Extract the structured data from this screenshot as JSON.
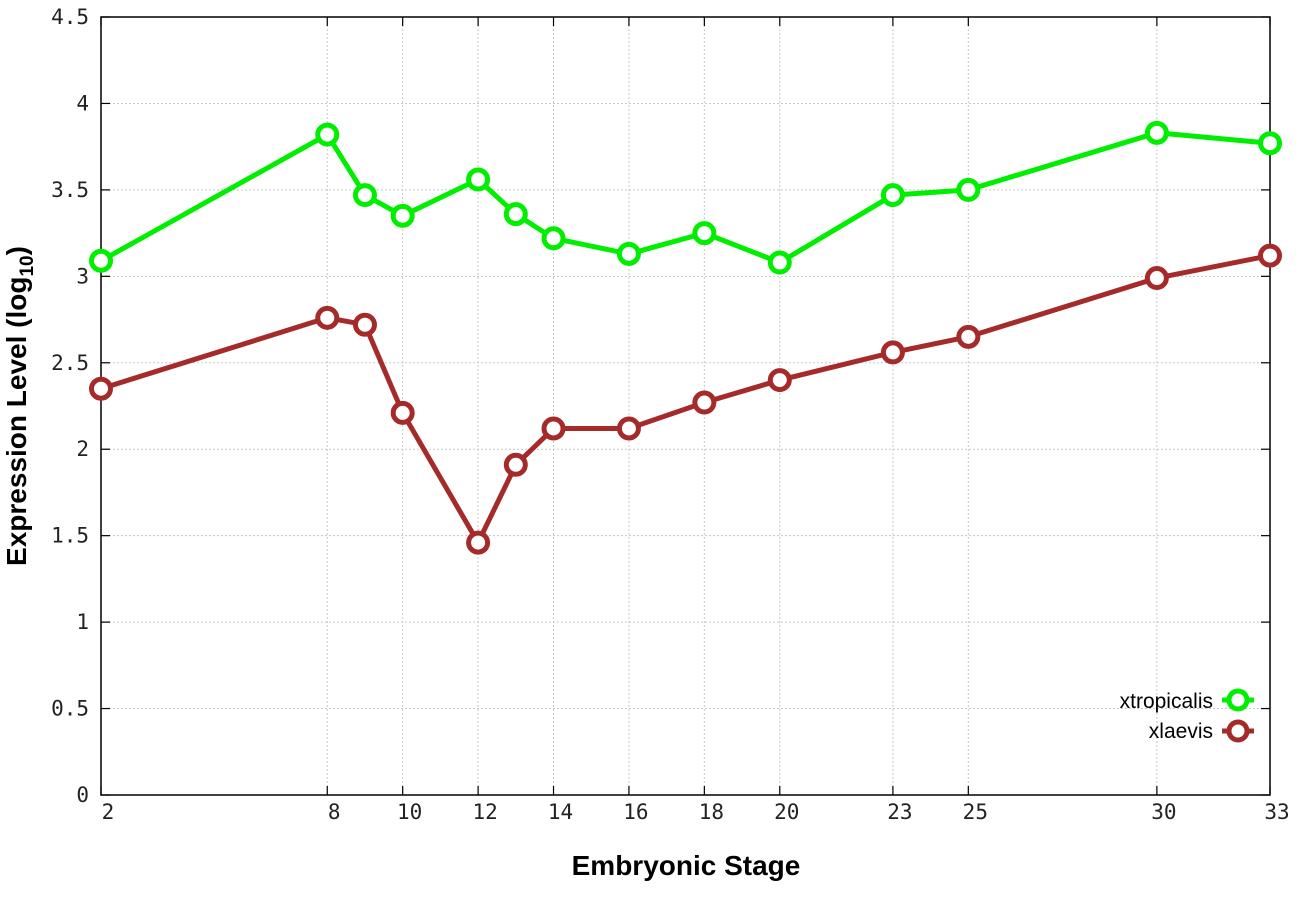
{
  "chart_data": {
    "type": "line",
    "x": [
      2,
      8,
      9,
      10,
      12,
      13,
      14,
      16,
      18,
      20,
      23,
      25,
      30,
      33
    ],
    "x_ticks": [
      2,
      8,
      10,
      12,
      14,
      16,
      18,
      20,
      23,
      25,
      30,
      33
    ],
    "y_ticks": [
      "0",
      "0.5",
      "1",
      "1.5",
      "2",
      "2.5",
      "3",
      "3.5",
      "4",
      "4.5"
    ],
    "xlim": [
      2,
      33
    ],
    "ylim": [
      0,
      4.5
    ],
    "xlabel": "Embryonic Stage",
    "ylabel_main": "Expression Level (log",
    "ylabel_sub": "10",
    "ylabel_close": ")",
    "grid": true,
    "legend_position": "bottom-right",
    "series": [
      {
        "name": "xtropicalis",
        "color": "#00ee00",
        "values": [
          3.09,
          3.82,
          3.47,
          3.35,
          3.56,
          3.36,
          3.22,
          3.13,
          3.25,
          3.08,
          3.47,
          3.5,
          3.83,
          3.77
        ]
      },
      {
        "name": "xlaevis",
        "color": "#a52a2a",
        "values": [
          2.35,
          2.76,
          2.72,
          2.21,
          1.46,
          1.91,
          2.12,
          2.12,
          2.27,
          2.4,
          2.56,
          2.65,
          2.99,
          3.12
        ]
      }
    ]
  }
}
